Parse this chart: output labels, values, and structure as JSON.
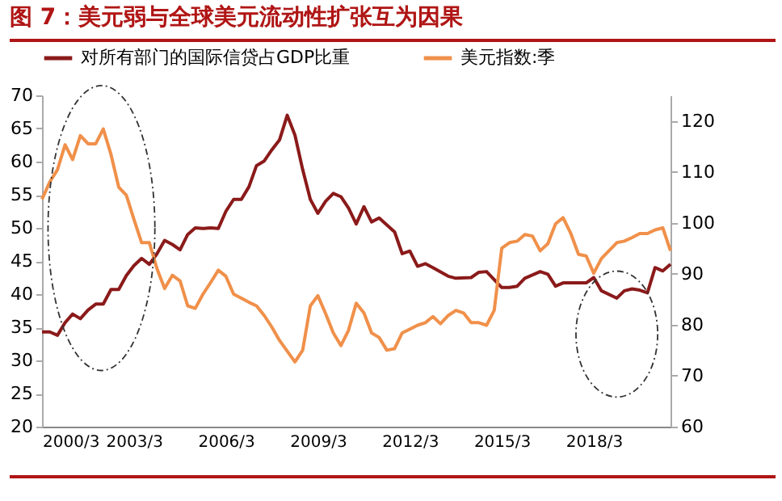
{
  "chart_data": {
    "type": "line",
    "title": "图 7：美元弱与全球美元流动性扩张互为因果",
    "xlim": [
      "2000-03",
      "2020-09"
    ],
    "xticks": [
      {
        "value": "2000-03",
        "label": "2000/3"
      },
      {
        "value": "2003-03",
        "label": "2003/3"
      },
      {
        "value": "2006-03",
        "label": "2006/3"
      },
      {
        "value": "2009-03",
        "label": "2009/3"
      },
      {
        "value": "2012-03",
        "label": "2012/3"
      },
      {
        "value": "2015-03",
        "label": "2015/3"
      },
      {
        "value": "2018-03",
        "label": "2018/3"
      }
    ],
    "ylim": [
      20,
      70
    ],
    "yticks": [
      20,
      25,
      30,
      35,
      40,
      45,
      50,
      55,
      60,
      65,
      70
    ],
    "y2lim": [
      60,
      125
    ],
    "y2ticks": [
      60,
      70,
      80,
      90,
      100,
      110,
      120
    ],
    "grid": false,
    "legend": "top",
    "line_style": "solid",
    "marker": "none",
    "series": [
      {
        "name": "对所有部门的国际信贷占GDP比重",
        "color": "#8b1a1a",
        "x": [
          "2000-03",
          "2000-06",
          "2000-09",
          "2000-12",
          "2001-03",
          "2001-06",
          "2001-09",
          "2001-12",
          "2002-03",
          "2002-06",
          "2002-09",
          "2002-12",
          "2003-03",
          "2003-06",
          "2003-09",
          "2003-12",
          "2004-03",
          "2004-06",
          "2004-09",
          "2004-12",
          "2005-03",
          "2005-06",
          "2005-09",
          "2005-12",
          "2006-03",
          "2006-06",
          "2006-09",
          "2006-12",
          "2007-03",
          "2007-06",
          "2007-09",
          "2007-12",
          "2008-03",
          "2008-06",
          "2008-09",
          "2008-12",
          "2009-03",
          "2009-06",
          "2009-09",
          "2009-12",
          "2010-03",
          "2010-06",
          "2010-09",
          "2010-12",
          "2011-03",
          "2011-09",
          "2011-12",
          "2012-03",
          "2012-06",
          "2012-09",
          "2012-12",
          "2013-06",
          "2013-09",
          "2014-03",
          "2014-06",
          "2014-09",
          "2015-03",
          "2015-06",
          "2015-09",
          "2015-12",
          "2016-06",
          "2016-09",
          "2016-12",
          "2017-03",
          "2017-09",
          "2017-12",
          "2018-03",
          "2018-06",
          "2018-12",
          "2019-03",
          "2019-06",
          "2019-09",
          "2019-12",
          "2020-03",
          "2020-06",
          "2020-09"
        ],
        "values": [
          34.3,
          34.3,
          33.8,
          35.7,
          37,
          36.3,
          37.6,
          38.5,
          38.5,
          40.7,
          40.7,
          42.8,
          44.3,
          45.4,
          44.5,
          46.1,
          48.1,
          47.5,
          46.7,
          49,
          50,
          49.9,
          50,
          49.9,
          52.5,
          54.3,
          54.3,
          56.2,
          59.4,
          60.1,
          61.8,
          63.3,
          67,
          64,
          58.8,
          54.3,
          52.2,
          54,
          55.2,
          54.7,
          53,
          50.6,
          53.2,
          50.9,
          51.5,
          49.4,
          46.1,
          46.5,
          44.2,
          44.6,
          44,
          42.7,
          42.4,
          42.5,
          43.3,
          43.4,
          41,
          41,
          41.2,
          42.4,
          43.4,
          43,
          41.2,
          41.7,
          41.7,
          41.7,
          42.5,
          40.5,
          39.4,
          40.5,
          40.8,
          40.6,
          40.2,
          44,
          43.5,
          44.5
        ]
      },
      {
        "name": "美元指数:季",
        "color": "#f0904a",
        "axis": "y2",
        "x": [
          "2000-03",
          "2000-06",
          "2000-09",
          "2000-12",
          "2001-03",
          "2001-06",
          "2001-09",
          "2001-12",
          "2002-03",
          "2002-06",
          "2002-09",
          "2002-12",
          "2003-03",
          "2003-06",
          "2003-09",
          "2003-12",
          "2004-03",
          "2004-06",
          "2004-09",
          "2004-12",
          "2005-03",
          "2005-06",
          "2005-09",
          "2005-12",
          "2006-03",
          "2006-06",
          "2006-09",
          "2006-12",
          "2007-03",
          "2007-06",
          "2007-09",
          "2007-12",
          "2008-06",
          "2008-09",
          "2008-12",
          "2009-03",
          "2009-06",
          "2009-09",
          "2009-12",
          "2010-03",
          "2010-06",
          "2010-09",
          "2010-12",
          "2011-03",
          "2011-06",
          "2011-09",
          "2011-12",
          "2012-06",
          "2012-09",
          "2012-12",
          "2013-03",
          "2013-06",
          "2013-09",
          "2013-12",
          "2014-03",
          "2014-06",
          "2014-09",
          "2014-12",
          "2015-03",
          "2015-06",
          "2015-09",
          "2015-12",
          "2016-03",
          "2016-06",
          "2016-09",
          "2016-12",
          "2017-03",
          "2017-06",
          "2017-09",
          "2017-12",
          "2018-03",
          "2018-06",
          "2018-12",
          "2019-03",
          "2019-06",
          "2019-09",
          "2019-12",
          "2020-03",
          "2020-06",
          "2020-09"
        ],
        "values": [
          104.6,
          108,
          110.4,
          115.3,
          112.4,
          117.1,
          115.5,
          115.5,
          118.4,
          113.4,
          107,
          105.4,
          100.7,
          96.1,
          96.1,
          91,
          87.1,
          89.7,
          88.6,
          83.7,
          83.2,
          86,
          88.3,
          90.7,
          89.5,
          86,
          85.2,
          84.4,
          83.7,
          81.8,
          79.5,
          76.9,
          72.7,
          75,
          83.7,
          85.7,
          82.2,
          78.4,
          75.9,
          78.9,
          84.2,
          82.3,
          78.4,
          77.5,
          75,
          75.3,
          78.4,
          79.9,
          80.4,
          81.6,
          80.2,
          81.8,
          82.8,
          82.3,
          80.4,
          80.4,
          79.9,
          82.8,
          95,
          96.1,
          96.4,
          97.7,
          97.4,
          94.5,
          95.9,
          99.8,
          101,
          97.9,
          93.8,
          93.5,
          90.1,
          93,
          96.1,
          96.4,
          97.1,
          97.9,
          97.9,
          98.6,
          99,
          94.5
        ]
      }
    ]
  }
}
